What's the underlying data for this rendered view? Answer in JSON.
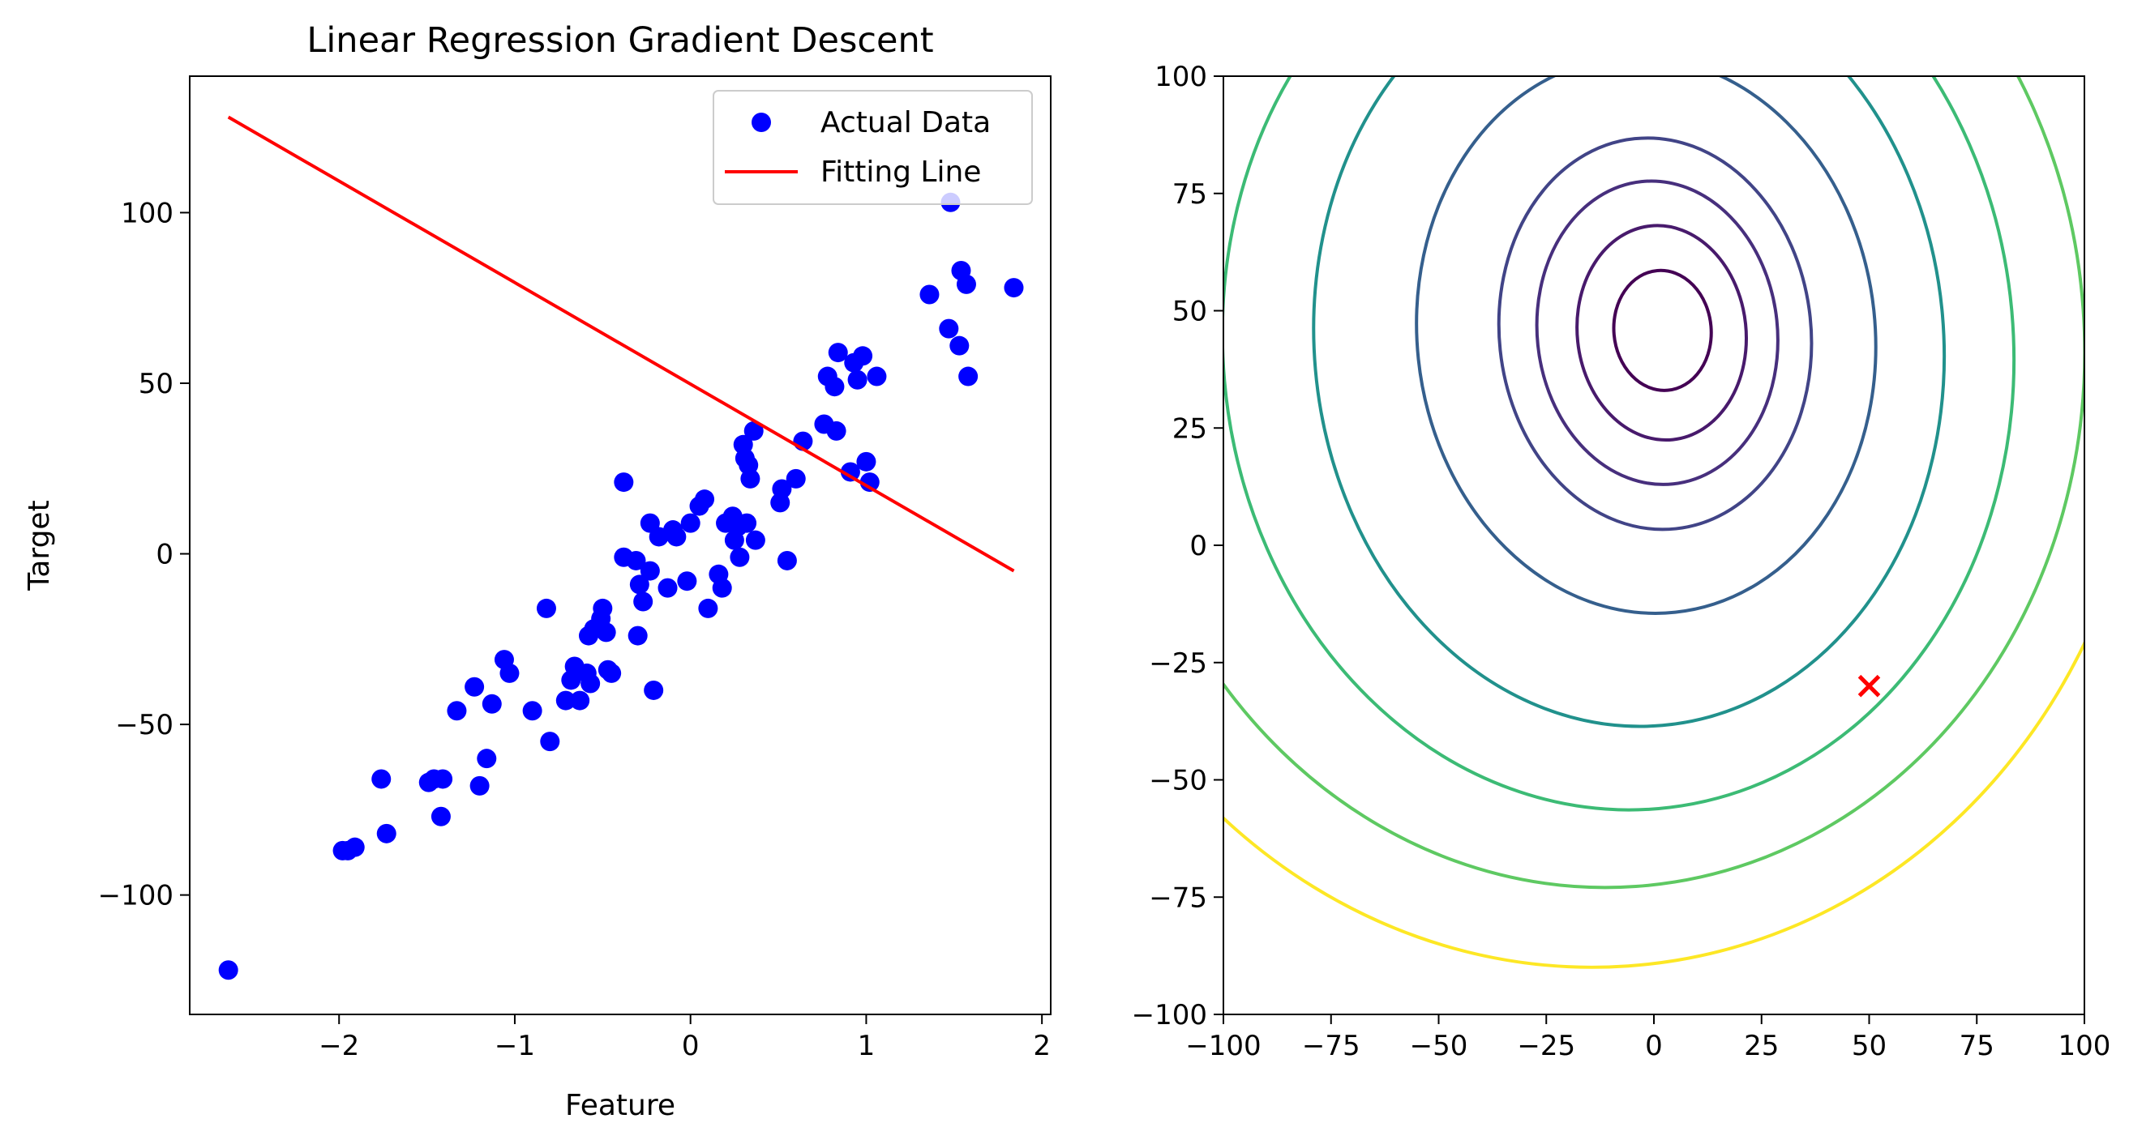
{
  "chart_data": [
    {
      "type": "scatter",
      "title": "Linear Regression Gradient Descent",
      "xlabel": "Feature",
      "ylabel": "Target",
      "xlim": [
        -2.85,
        2.05
      ],
      "ylim": [
        -135,
        140
      ],
      "xticks": [
        -2,
        -1,
        0,
        1,
        2
      ],
      "xtick_labels": [
        "−2",
        "−1",
        "0",
        "1",
        "2"
      ],
      "yticks": [
        -100,
        -50,
        0,
        50,
        100
      ],
      "ytick_labels": [
        "−100",
        "−50",
        "0",
        "50",
        "100"
      ],
      "legend": {
        "position": "top-right",
        "entries": [
          "Actual Data",
          "Fitting Line"
        ]
      },
      "colors": {
        "points": "#0000ff",
        "line": "#ff0000"
      },
      "series": [
        {
          "name": "Actual Data",
          "kind": "scatter",
          "points": [
            [
              -2.63,
              -122
            ],
            [
              -1.98,
              -87
            ],
            [
              -1.95,
              -87
            ],
            [
              -1.91,
              -86
            ],
            [
              -1.76,
              -66
            ],
            [
              -1.73,
              -82
            ],
            [
              -1.49,
              -67
            ],
            [
              -1.46,
              -66
            ],
            [
              -1.42,
              -77
            ],
            [
              -1.41,
              -66
            ],
            [
              -1.33,
              -46
            ],
            [
              -1.23,
              -39
            ],
            [
              -1.2,
              -68
            ],
            [
              -1.16,
              -60
            ],
            [
              -1.13,
              -44
            ],
            [
              -1.06,
              -31
            ],
            [
              -1.03,
              -35
            ],
            [
              -0.9,
              -46
            ],
            [
              -0.82,
              -16
            ],
            [
              -0.8,
              -55
            ],
            [
              -0.71,
              -43
            ],
            [
              -0.68,
              -37
            ],
            [
              -0.66,
              -33
            ],
            [
              -0.63,
              -43
            ],
            [
              -0.59,
              -35
            ],
            [
              -0.58,
              -24
            ],
            [
              -0.57,
              -38
            ],
            [
              -0.55,
              -22
            ],
            [
              -0.51,
              -19
            ],
            [
              -0.5,
              -16
            ],
            [
              -0.48,
              -23
            ],
            [
              -0.47,
              -34
            ],
            [
              -0.45,
              -35
            ],
            [
              -0.38,
              -1
            ],
            [
              -0.31,
              -2
            ],
            [
              -0.3,
              -24
            ],
            [
              -0.29,
              -9
            ],
            [
              -0.27,
              -14
            ],
            [
              -0.23,
              9
            ],
            [
              -0.23,
              -5
            ],
            [
              -0.21,
              -40
            ],
            [
              -0.18,
              5
            ],
            [
              -0.13,
              -10
            ],
            [
              -0.1,
              7
            ],
            [
              -0.08,
              5
            ],
            [
              -0.02,
              -8
            ],
            [
              0.0,
              9
            ],
            [
              0.05,
              14
            ],
            [
              0.08,
              16
            ],
            [
              0.1,
              -16
            ],
            [
              0.16,
              -6
            ],
            [
              0.18,
              -10
            ],
            [
              0.2,
              9
            ],
            [
              0.24,
              11
            ],
            [
              0.25,
              4
            ],
            [
              0.27,
              8
            ],
            [
              0.28,
              -1
            ],
            [
              0.3,
              32
            ],
            [
              0.31,
              28
            ],
            [
              0.32,
              9
            ],
            [
              0.33,
              26
            ],
            [
              0.34,
              22
            ],
            [
              0.36,
              36
            ],
            [
              0.37,
              4
            ],
            [
              0.51,
              15
            ],
            [
              0.52,
              19
            ],
            [
              0.55,
              -2
            ],
            [
              0.6,
              22
            ],
            [
              0.64,
              33
            ],
            [
              0.76,
              38
            ],
            [
              0.78,
              52
            ],
            [
              0.82,
              49
            ],
            [
              0.83,
              36
            ],
            [
              0.84,
              59
            ],
            [
              0.91,
              24
            ],
            [
              0.93,
              56
            ],
            [
              0.95,
              51
            ],
            [
              0.98,
              58
            ],
            [
              1.0,
              27
            ],
            [
              1.02,
              21
            ],
            [
              1.06,
              52
            ],
            [
              1.36,
              76
            ],
            [
              1.47,
              66
            ],
            [
              1.48,
              103
            ],
            [
              1.53,
              61
            ],
            [
              1.54,
              83
            ],
            [
              1.57,
              79
            ],
            [
              1.58,
              52
            ],
            [
              1.84,
              78
            ],
            [
              -0.38,
              21
            ]
          ]
        },
        {
          "name": "Fitting Line",
          "kind": "line",
          "points": [
            [
              -2.63,
              128
            ],
            [
              1.84,
              -5
            ]
          ]
        }
      ]
    },
    {
      "type": "contour",
      "title": "",
      "xlabel": "",
      "ylabel": "",
      "xlim": [
        -100,
        100
      ],
      "ylim": [
        -100,
        100
      ],
      "xticks": [
        -100,
        -75,
        -50,
        -25,
        0,
        25,
        50,
        75,
        100
      ],
      "xtick_labels": [
        "−100",
        "−75",
        "−50",
        "−25",
        "0",
        "25",
        "50",
        "75",
        "100"
      ],
      "yticks": [
        -100,
        -75,
        -50,
        -25,
        0,
        25,
        50,
        75,
        100
      ],
      "ytick_labels": [
        "−100",
        "−75",
        "−50",
        "−25",
        "0",
        "25",
        "50",
        "75",
        "100"
      ],
      "colormap": "viridis",
      "contour_levels": [
        {
          "cx": 2,
          "cy": 45.8,
          "rx": 11.3,
          "ry": 12.8,
          "rot": -5,
          "color": "#440154"
        },
        {
          "cx": 1.8,
          "cy": 45.3,
          "rx": 19.6,
          "ry": 22.9,
          "rot": -6,
          "color": "#481a6c"
        },
        {
          "cx": 0.8,
          "cy": 45.3,
          "rx": 27.9,
          "ry": 32.4,
          "rot": -6,
          "color": "#472f7d"
        },
        {
          "cx": 0.3,
          "cy": 45.1,
          "rx": 36.2,
          "ry": 41.8,
          "rot": -6,
          "color": "#414487"
        },
        {
          "cx": -1.8,
          "cy": 44.8,
          "rx": 53.2,
          "ry": 59.4,
          "rot": -6,
          "color": "#355f8d"
        },
        {
          "cx": -5.8,
          "cy": 43.3,
          "rx": 73.1,
          "ry": 82,
          "rot": -5,
          "color": "#21918c"
        },
        {
          "cx": -8.3,
          "cy": 42.4,
          "rx": 91.8,
          "ry": 98.9,
          "rot": -5,
          "color": "#3cbb75"
        },
        {
          "cx": -13,
          "cy": 43,
          "rx": 113,
          "ry": 116,
          "rot": -4,
          "color": "#5ec962"
        },
        {
          "cx": -16,
          "cy": 42,
          "rx": 131,
          "ry": 132,
          "rot": -4,
          "color": "#fde725"
        }
      ],
      "marker": {
        "x": 50,
        "y": -30,
        "symbol": "x",
        "color": "#ff0000"
      }
    }
  ]
}
